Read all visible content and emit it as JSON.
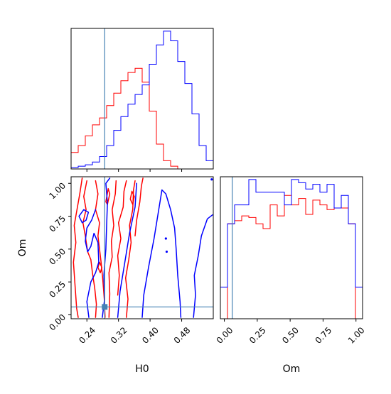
{
  "chart_data": {
    "type": "corner",
    "parameters": [
      "H0",
      "Om"
    ],
    "truth": {
      "H0": 0.285,
      "Om": 0.06
    },
    "colors": {
      "series_a": "#0000ff",
      "series_b": "#ff0000",
      "truth": "#4682b4"
    },
    "axes": {
      "H0": {
        "label": "H0",
        "range": [
          0.2,
          0.56
        ],
        "ticks": [
          0.24,
          0.32,
          0.4,
          0.48
        ],
        "tick_labels": [
          "0.24",
          "0.32",
          "0.40",
          "0.48"
        ]
      },
      "Om": {
        "label": "Om",
        "range": [
          -0.03,
          1.05
        ],
        "ticks": [
          0.0,
          0.25,
          0.5,
          0.75,
          1.0
        ],
        "tick_labels": [
          "0.00",
          "0.25",
          "0.50",
          "0.75",
          "1.00"
        ]
      }
    },
    "hist_H0": {
      "bin_edges": [
        0.2,
        0.218,
        0.236,
        0.254,
        0.272,
        0.29,
        0.308,
        0.326,
        0.344,
        0.362,
        0.38,
        0.398,
        0.416,
        0.434,
        0.452,
        0.47,
        0.488,
        0.506,
        0.524,
        0.542,
        0.56
      ],
      "series_a": [
        1,
        2,
        3,
        5,
        9,
        17,
        28,
        38,
        47,
        54,
        61,
        76,
        90,
        100,
        93,
        78,
        62,
        40,
        17,
        6
      ],
      "series_b": [
        12,
        17,
        24,
        32,
        37,
        46,
        55,
        64,
        70,
        73,
        63,
        42,
        18,
        6,
        2,
        0,
        0,
        0,
        0,
        0
      ]
    },
    "hist_Om": {
      "bin_edges": [
        -0.03,
        0.024,
        0.078,
        0.132,
        0.186,
        0.24,
        0.294,
        0.348,
        0.402,
        0.456,
        0.51,
        0.564,
        0.618,
        0.672,
        0.726,
        0.78,
        0.834,
        0.888,
        0.942,
        0.996,
        1.05
      ],
      "series_a": [
        20,
        60,
        72,
        72,
        88,
        80,
        80,
        80,
        80,
        72,
        88,
        86,
        82,
        85,
        80,
        85,
        70,
        78,
        60,
        20
      ],
      "series_b": [
        0,
        60,
        62,
        65,
        64,
        60,
        57,
        72,
        65,
        78,
        72,
        76,
        66,
        75,
        72,
        69,
        70,
        70,
        60,
        0
      ]
    },
    "contours_a": [
      [
        [
          0.279,
          -0.02
        ],
        [
          0.285,
          0.12
        ],
        [
          0.283,
          0.3
        ],
        [
          0.288,
          0.5
        ],
        [
          0.29,
          0.68
        ],
        [
          0.292,
          0.85
        ],
        [
          0.288,
          1.0
        ],
        [
          0.298,
          1.04
        ]
      ],
      [
        [
          0.318,
          -0.02
        ],
        [
          0.324,
          0.18
        ],
        [
          0.336,
          0.4
        ],
        [
          0.348,
          0.62
        ],
        [
          0.362,
          0.82
        ],
        [
          0.366,
          1.0
        ]
      ],
      [
        [
          0.38,
          -0.02
        ],
        [
          0.384,
          0.15
        ],
        [
          0.396,
          0.36
        ],
        [
          0.41,
          0.58
        ],
        [
          0.422,
          0.8
        ],
        [
          0.43,
          0.95
        ],
        [
          0.44,
          0.92
        ],
        [
          0.452,
          0.8
        ],
        [
          0.462,
          0.66
        ],
        [
          0.466,
          0.5
        ],
        [
          0.47,
          0.3
        ],
        [
          0.476,
          0.1
        ],
        [
          0.478,
          -0.02
        ]
      ],
      [
        [
          0.51,
          -0.02
        ],
        [
          0.515,
          0.15
        ],
        [
          0.512,
          0.3
        ],
        [
          0.522,
          0.45
        ],
        [
          0.53,
          0.6
        ],
        [
          0.545,
          0.73
        ],
        [
          0.558,
          0.76
        ]
      ],
      [
        [
          0.245,
          -0.02
        ],
        [
          0.24,
          0.1
        ],
        [
          0.25,
          0.25
        ],
        [
          0.262,
          0.32
        ],
        [
          0.27,
          0.4
        ],
        [
          0.268,
          0.55
        ],
        [
          0.258,
          0.62
        ],
        [
          0.25,
          0.52
        ],
        [
          0.242,
          0.48
        ],
        [
          0.236,
          0.56
        ],
        [
          0.24,
          0.66
        ],
        [
          0.252,
          0.72
        ],
        [
          0.262,
          0.8
        ]
      ],
      [
        [
          0.228,
          0.7
        ],
        [
          0.22,
          0.75
        ],
        [
          0.232,
          0.8
        ],
        [
          0.244,
          0.78
        ],
        [
          0.238,
          0.72
        ],
        [
          0.228,
          0.7
        ]
      ]
    ],
    "contours_b": [
      [
        [
          0.228,
          1.04
        ],
        [
          0.222,
          0.92
        ],
        [
          0.215,
          0.8
        ],
        [
          0.208,
          0.68
        ],
        [
          0.212,
          0.55
        ],
        [
          0.206,
          0.4
        ],
        [
          0.21,
          0.22
        ],
        [
          0.214,
          0.05
        ],
        [
          0.218,
          -0.02
        ]
      ],
      [
        [
          0.24,
          1.02
        ],
        [
          0.232,
          0.9
        ],
        [
          0.238,
          0.8
        ],
        [
          0.23,
          0.7
        ],
        [
          0.236,
          0.6
        ],
        [
          0.242,
          0.48
        ],
        [
          0.25,
          0.42
        ],
        [
          0.254,
          0.32
        ],
        [
          0.26,
          0.2
        ],
        [
          0.264,
          0.08
        ],
        [
          0.262,
          -0.02
        ]
      ],
      [
        [
          0.262,
          1.02
        ],
        [
          0.268,
          0.92
        ],
        [
          0.262,
          0.8
        ],
        [
          0.272,
          0.7
        ],
        [
          0.268,
          0.6
        ],
        [
          0.272,
          0.5
        ],
        [
          0.276,
          0.4
        ],
        [
          0.28,
          0.28
        ],
        [
          0.284,
          0.12
        ],
        [
          0.286,
          -0.02
        ]
      ],
      [
        [
          0.296,
          -0.02
        ],
        [
          0.298,
          0.16
        ],
        [
          0.296,
          0.32
        ],
        [
          0.304,
          0.44
        ],
        [
          0.302,
          0.56
        ],
        [
          0.308,
          0.68
        ],
        [
          0.304,
          0.8
        ],
        [
          0.312,
          0.92
        ],
        [
          0.314,
          1.02
        ]
      ],
      [
        [
          0.318,
          0.15
        ],
        [
          0.322,
          0.3
        ],
        [
          0.318,
          0.45
        ],
        [
          0.326,
          0.58
        ],
        [
          0.32,
          0.7
        ],
        [
          0.332,
          0.82
        ],
        [
          0.334,
          0.94
        ],
        [
          0.34,
          1.02
        ]
      ],
      [
        [
          0.34,
          -0.02
        ],
        [
          0.344,
          0.12
        ],
        [
          0.338,
          0.28
        ],
        [
          0.346,
          0.42
        ],
        [
          0.352,
          0.55
        ],
        [
          0.348,
          0.68
        ],
        [
          0.356,
          0.8
        ],
        [
          0.358,
          0.95
        ],
        [
          0.362,
          1.02
        ]
      ],
      [
        [
          0.362,
          0.6
        ],
        [
          0.366,
          0.72
        ],
        [
          0.374,
          0.86
        ],
        [
          0.378,
          0.98
        ],
        [
          0.382,
          1.04
        ]
      ],
      [
        [
          0.288,
          0.86
        ],
        [
          0.294,
          0.96
        ],
        [
          0.298,
          0.92
        ],
        [
          0.292,
          0.84
        ],
        [
          0.288,
          0.86
        ]
      ],
      [
        [
          0.268,
          0.36
        ],
        [
          0.272,
          0.4
        ],
        [
          0.278,
          0.36
        ],
        [
          0.274,
          0.32
        ],
        [
          0.268,
          0.36
        ]
      ],
      [
        [
          0.35,
          0.88
        ],
        [
          0.354,
          0.94
        ],
        [
          0.36,
          0.9
        ],
        [
          0.356,
          0.84
        ],
        [
          0.35,
          0.88
        ]
      ]
    ]
  }
}
